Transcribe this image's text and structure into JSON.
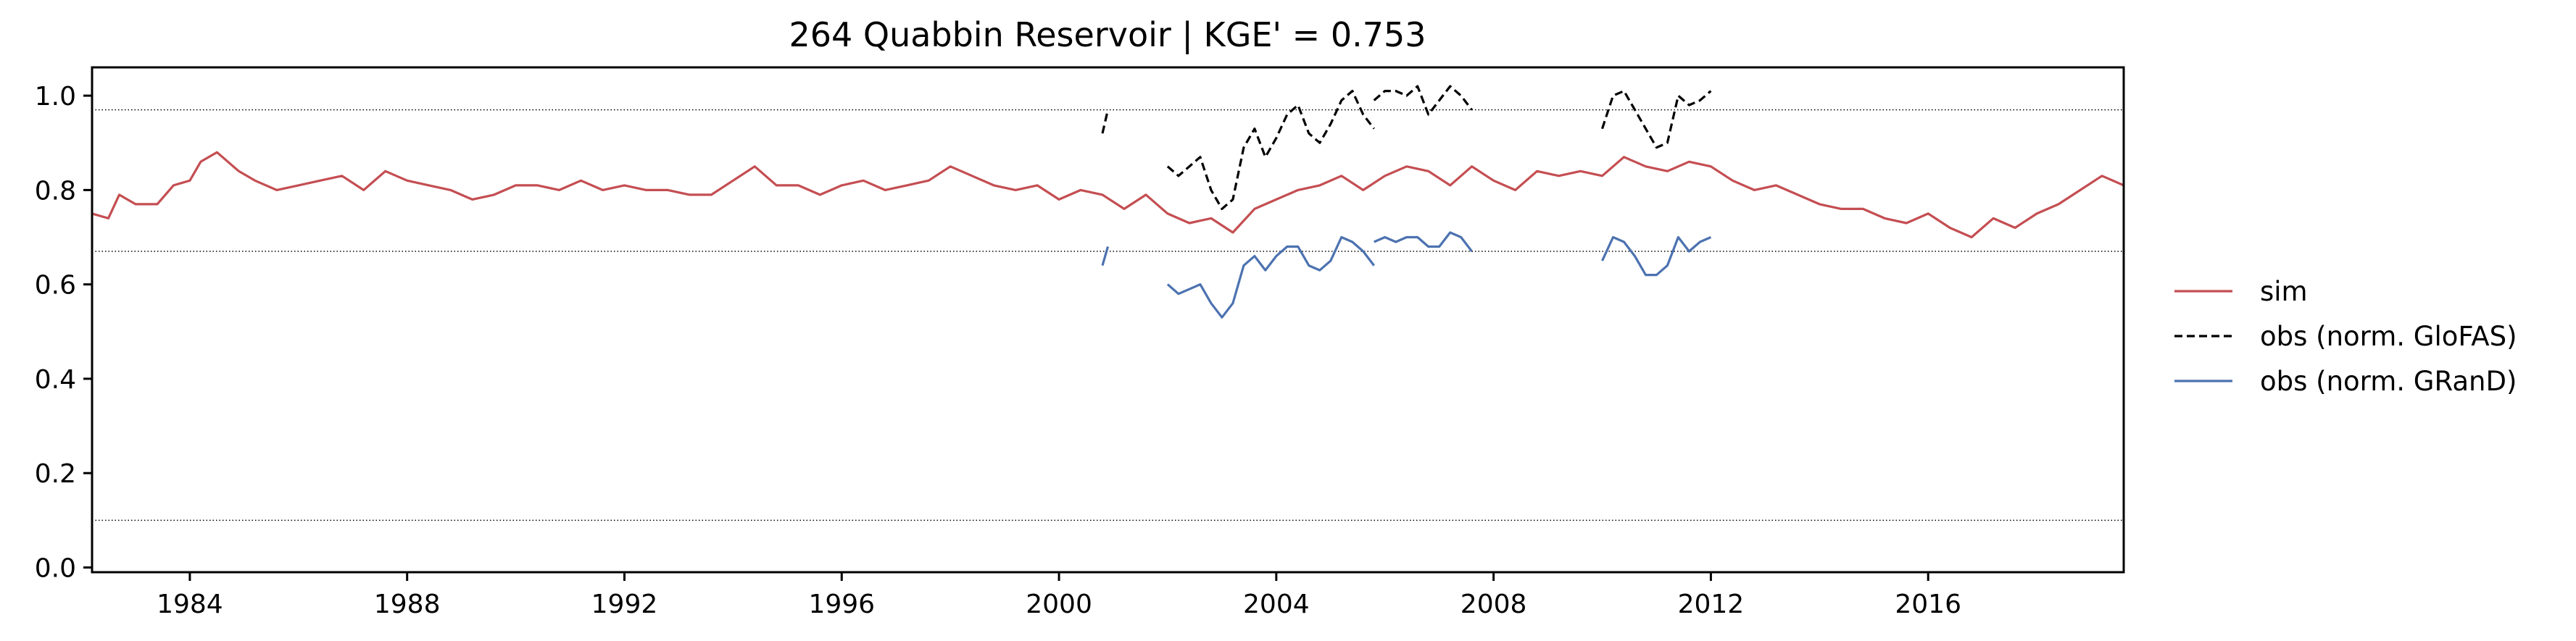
{
  "chart_data": {
    "type": "line",
    "title": "264  Quabbin Reservoir | KGE' = 0.753",
    "xlabel": "",
    "ylabel": "",
    "xlim": [
      1982.2,
      2019.6
    ],
    "ylim": [
      -0.01,
      1.06
    ],
    "x_ticks": [
      1984,
      1988,
      1992,
      1996,
      2000,
      2004,
      2008,
      2012,
      2016
    ],
    "y_ticks": [
      0.0,
      0.2,
      0.4,
      0.6,
      0.8,
      1.0
    ],
    "y_tick_labels": [
      "0.0",
      "0.2",
      "0.4",
      "0.6",
      "0.8",
      "1.0"
    ],
    "reference_lines": [
      0.97,
      0.67,
      0.1
    ],
    "grid": false,
    "legend_position": "right",
    "series": [
      {
        "name": "sim",
        "color": "#c44e52",
        "style": "solid",
        "x": [
          1982.2,
          1982.5,
          1982.7,
          1983.0,
          1983.4,
          1983.7,
          1984.0,
          1984.2,
          1984.5,
          1984.9,
          1985.2,
          1985.6,
          1986.0,
          1986.4,
          1986.8,
          1987.2,
          1987.6,
          1988.0,
          1988.4,
          1988.8,
          1989.2,
          1989.6,
          1990.0,
          1990.4,
          1990.8,
          1991.2,
          1991.6,
          1992.0,
          1992.4,
          1992.8,
          1993.2,
          1993.6,
          1994.0,
          1994.4,
          1994.8,
          1995.2,
          1995.6,
          1996.0,
          1996.4,
          1996.8,
          1997.2,
          1997.6,
          1998.0,
          1998.4,
          1998.8,
          1999.2,
          1999.6,
          2000.0,
          2000.4,
          2000.8,
          2001.2,
          2001.6,
          2002.0,
          2002.4,
          2002.8,
          2003.2,
          2003.6,
          2004.0,
          2004.4,
          2004.8,
          2005.2,
          2005.6,
          2006.0,
          2006.4,
          2006.8,
          2007.2,
          2007.6,
          2008.0,
          2008.4,
          2008.8,
          2009.2,
          2009.6,
          2010.0,
          2010.4,
          2010.8,
          2011.2,
          2011.6,
          2012.0,
          2012.4,
          2012.8,
          2013.2,
          2013.6,
          2014.0,
          2014.4,
          2014.8,
          2015.2,
          2015.6,
          2016.0,
          2016.4,
          2016.8,
          2017.2,
          2017.6,
          2018.0,
          2018.4,
          2018.8,
          2019.2,
          2019.6
        ],
        "y": [
          0.75,
          0.74,
          0.79,
          0.77,
          0.77,
          0.81,
          0.82,
          0.86,
          0.88,
          0.84,
          0.82,
          0.8,
          0.81,
          0.82,
          0.83,
          0.8,
          0.84,
          0.82,
          0.81,
          0.8,
          0.78,
          0.79,
          0.81,
          0.81,
          0.8,
          0.82,
          0.8,
          0.81,
          0.8,
          0.8,
          0.79,
          0.79,
          0.82,
          0.85,
          0.81,
          0.81,
          0.79,
          0.81,
          0.82,
          0.8,
          0.81,
          0.82,
          0.85,
          0.83,
          0.81,
          0.8,
          0.81,
          0.78,
          0.8,
          0.79,
          0.76,
          0.79,
          0.75,
          0.73,
          0.74,
          0.71,
          0.76,
          0.78,
          0.8,
          0.81,
          0.83,
          0.8,
          0.83,
          0.85,
          0.84,
          0.81,
          0.85,
          0.82,
          0.8,
          0.84,
          0.83,
          0.84,
          0.83,
          0.87,
          0.85,
          0.84,
          0.86,
          0.85,
          0.82,
          0.8,
          0.81,
          0.79,
          0.77,
          0.76,
          0.76,
          0.74,
          0.73,
          0.75,
          0.72,
          0.7,
          0.74,
          0.72,
          0.75,
          0.77,
          0.8,
          0.83,
          0.81
        ]
      },
      {
        "name": "obs (norm. GloFAS)",
        "color": "#000000",
        "style": "dashed",
        "segments": [
          {
            "x": [
              2000.8,
              2000.9
            ],
            "y": [
              0.92,
              0.97
            ]
          },
          {
            "x": [
              2002.0,
              2002.2,
              2002.4,
              2002.6,
              2002.8,
              2003.0,
              2003.2,
              2003.4,
              2003.6,
              2003.8,
              2004.0,
              2004.2,
              2004.4,
              2004.6,
              2004.8,
              2005.0,
              2005.2,
              2005.4,
              2005.6,
              2005.8
            ],
            "y": [
              0.85,
              0.83,
              0.85,
              0.87,
              0.8,
              0.76,
              0.78,
              0.89,
              0.93,
              0.87,
              0.91,
              0.96,
              0.98,
              0.92,
              0.9,
              0.94,
              0.99,
              1.01,
              0.96,
              0.93
            ]
          },
          {
            "x": [
              2005.8,
              2006.0,
              2006.2,
              2006.4,
              2006.6,
              2006.8,
              2007.0,
              2007.2,
              2007.4,
              2007.6
            ],
            "y": [
              0.99,
              1.01,
              1.01,
              1.0,
              1.02,
              0.96,
              0.99,
              1.02,
              1.0,
              0.97
            ]
          },
          {
            "x": [
              2010.0,
              2010.2,
              2010.4,
              2010.6,
              2010.8,
              2011.0,
              2011.2,
              2011.4,
              2011.6,
              2011.8,
              2012.0
            ],
            "y": [
              0.93,
              1.0,
              1.01,
              0.97,
              0.93,
              0.89,
              0.9,
              1.0,
              0.98,
              0.99,
              1.01
            ]
          }
        ]
      },
      {
        "name": "obs (norm. GRanD)",
        "color": "#4c72b0",
        "style": "solid",
        "segments": [
          {
            "x": [
              2000.8,
              2000.9
            ],
            "y": [
              0.64,
              0.68
            ]
          },
          {
            "x": [
              2002.0,
              2002.2,
              2002.4,
              2002.6,
              2002.8,
              2003.0,
              2003.2,
              2003.4,
              2003.6,
              2003.8,
              2004.0,
              2004.2,
              2004.4,
              2004.6,
              2004.8,
              2005.0,
              2005.2,
              2005.4,
              2005.6,
              2005.8
            ],
            "y": [
              0.6,
              0.58,
              0.59,
              0.6,
              0.56,
              0.53,
              0.56,
              0.64,
              0.66,
              0.63,
              0.66,
              0.68,
              0.68,
              0.64,
              0.63,
              0.65,
              0.7,
              0.69,
              0.67,
              0.64
            ]
          },
          {
            "x": [
              2005.8,
              2006.0,
              2006.2,
              2006.4,
              2006.6,
              2006.8,
              2007.0,
              2007.2,
              2007.4,
              2007.6
            ],
            "y": [
              0.69,
              0.7,
              0.69,
              0.7,
              0.7,
              0.68,
              0.68,
              0.71,
              0.7,
              0.67
            ]
          },
          {
            "x": [
              2010.0,
              2010.2,
              2010.4,
              2010.6,
              2010.8,
              2011.0,
              2011.2,
              2011.4,
              2011.6,
              2011.8,
              2012.0
            ],
            "y": [
              0.65,
              0.7,
              0.69,
              0.66,
              0.62,
              0.62,
              0.64,
              0.7,
              0.67,
              0.69,
              0.7
            ]
          }
        ]
      }
    ]
  }
}
